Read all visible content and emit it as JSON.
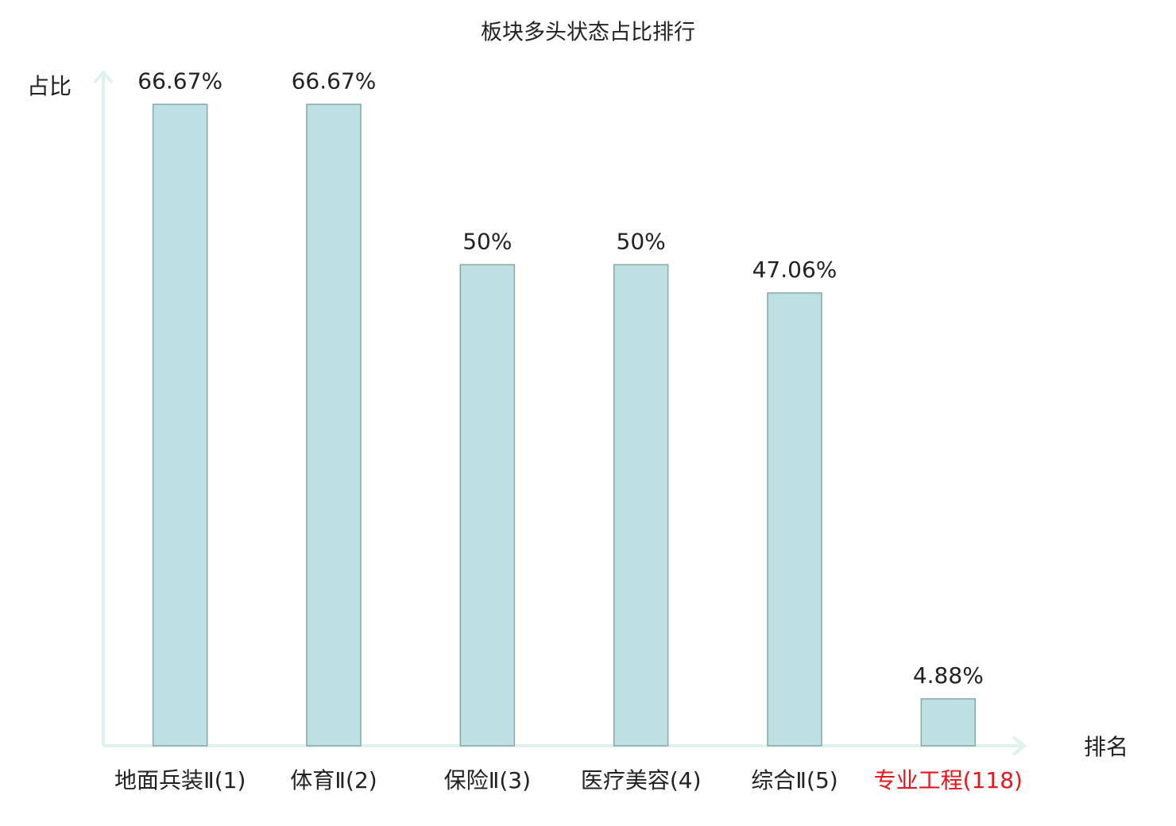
{
  "chart_data": {
    "type": "bar",
    "title": "板块多头状态占比排行",
    "y_label": "占比",
    "x_label": "排名",
    "categories": [
      "地面兵装Ⅱ(1)",
      "体育Ⅱ(2)",
      "保险Ⅱ(3)",
      "医疗美容(4)",
      "综合Ⅱ(5)",
      "专业工程(118)"
    ],
    "values": [
      66.67,
      66.67,
      50,
      50,
      47.06,
      4.88
    ],
    "value_labels": [
      "66.67%",
      "66.67%",
      "50%",
      "50%",
      "47.06%",
      "4.88%"
    ],
    "color": "#bde0e3",
    "edge_color": "#8aa6a8",
    "label_colors": [
      "#222222",
      "#222222",
      "#222222",
      "#222222",
      "#222222",
      "#e8151b"
    ],
    "ylim": [
      0,
      70
    ]
  }
}
